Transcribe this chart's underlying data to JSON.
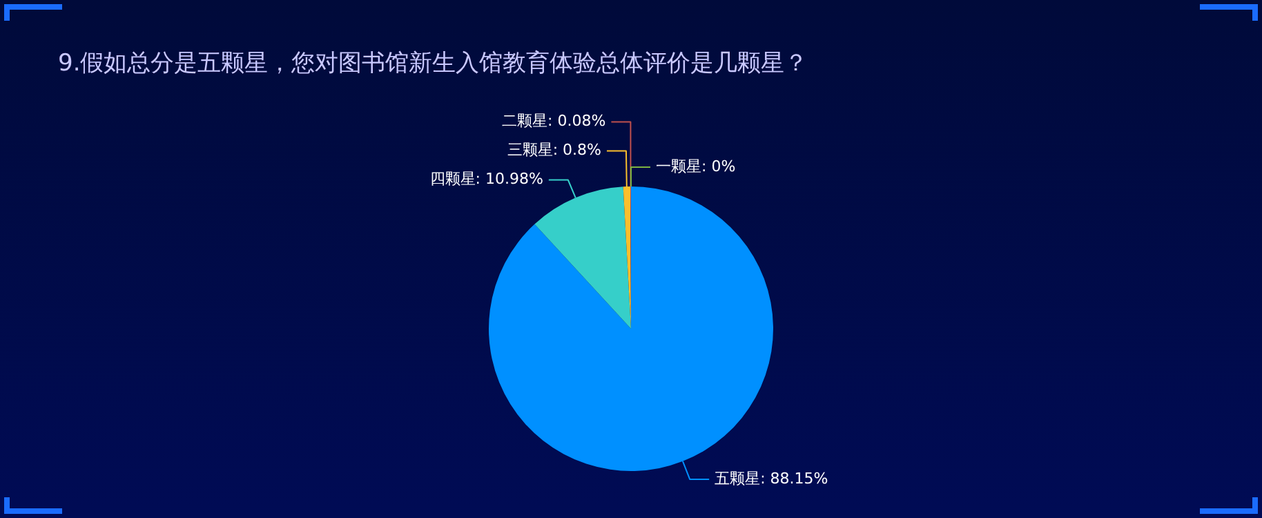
{
  "chart_data": {
    "type": "pie",
    "title": "9.假如总分是五颗星，您对图书馆新生入馆教育体验总体评价是几颗星？",
    "categories": [
      "五颗星",
      "四颗星",
      "三颗星",
      "二颗星",
      "一颗星"
    ],
    "values": [
      88.15,
      10.98,
      0.8,
      0.08,
      0
    ],
    "value_labels": [
      "88.15%",
      "10.98%",
      "0.8%",
      "0.08%",
      "0%"
    ],
    "colors": [
      "#0090ff",
      "#36cfc9",
      "#fbbf2c",
      "#c0504d",
      "#7cb342"
    ]
  }
}
